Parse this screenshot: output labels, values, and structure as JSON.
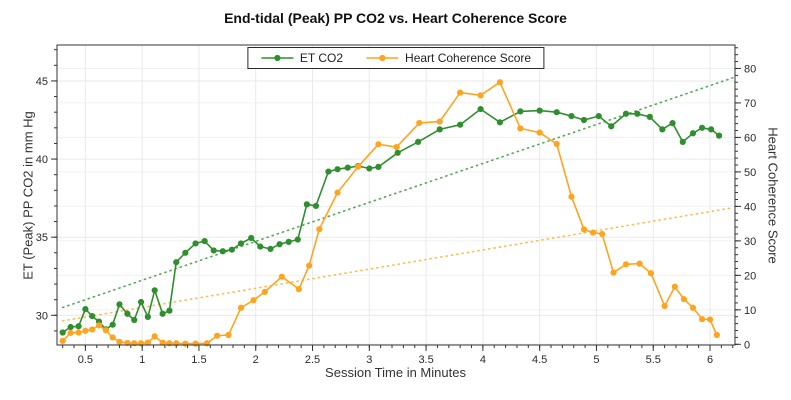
{
  "chart_data": {
    "type": "line",
    "title": "End-tidal (Peak) PP CO2 vs. Heart Coherence Score",
    "xlabel": "Session Time in Minutes",
    "ylabel_left": "ET (Peak) PP CO2 in mm Hg",
    "ylabel_right": "Heart Coherence Score",
    "xlim": [
      0.25,
      6.22
    ],
    "ylim_left": [
      28.1,
      47.3
    ],
    "ylim_right": [
      -0.2,
      86.8
    ],
    "x_ticks": [
      0.5,
      1,
      1.5,
      2,
      2.5,
      3,
      3.5,
      4,
      4.5,
      5,
      5.5,
      6
    ],
    "x_tick_labels": [
      "0.5",
      "1",
      "1.5",
      "2",
      "2.5",
      "3",
      "3.5",
      "4",
      "4.5",
      "5",
      "5.5",
      "6"
    ],
    "x_minor_step": 0.1,
    "y_left_ticks": [
      30,
      35,
      40,
      45
    ],
    "y_left_minor_step": 1,
    "y_right_ticks": [
      0,
      10,
      20,
      30,
      40,
      50,
      60,
      70,
      80
    ],
    "y_right_minor_step": 2,
    "grid": "on",
    "legend_position": "top-center",
    "series": [
      {
        "name": "ET CO2",
        "axis": "left",
        "color": "#2f8f2f",
        "trend_color": "#55a855",
        "trend": [
          [
            0.3,
            30.5
          ],
          [
            6.2,
            45.2
          ]
        ],
        "points": [
          [
            0.3,
            28.9
          ],
          [
            0.37,
            29.25
          ],
          [
            0.44,
            29.3
          ],
          [
            0.5,
            30.4
          ],
          [
            0.56,
            29.95
          ],
          [
            0.62,
            29.6
          ],
          [
            0.68,
            29.1
          ],
          [
            0.74,
            29.4
          ],
          [
            0.8,
            30.7
          ],
          [
            0.87,
            30.1
          ],
          [
            0.93,
            29.7
          ],
          [
            0.99,
            30.85
          ],
          [
            1.05,
            29.9
          ],
          [
            1.11,
            31.6
          ],
          [
            1.18,
            30.1
          ],
          [
            1.24,
            30.3
          ],
          [
            1.3,
            33.4
          ],
          [
            1.38,
            34.0
          ],
          [
            1.47,
            34.6
          ],
          [
            1.55,
            34.75
          ],
          [
            1.63,
            34.15
          ],
          [
            1.71,
            34.1
          ],
          [
            1.79,
            34.2
          ],
          [
            1.87,
            34.6
          ],
          [
            1.96,
            34.95
          ],
          [
            2.04,
            34.4
          ],
          [
            2.13,
            34.25
          ],
          [
            2.21,
            34.55
          ],
          [
            2.29,
            34.7
          ],
          [
            2.37,
            34.85
          ],
          [
            2.45,
            37.1
          ],
          [
            2.53,
            37.0
          ],
          [
            2.64,
            39.2
          ],
          [
            2.72,
            39.35
          ],
          [
            2.81,
            39.45
          ],
          [
            2.9,
            39.55
          ],
          [
            3.0,
            39.4
          ],
          [
            3.08,
            39.5
          ],
          [
            3.25,
            40.4
          ],
          [
            3.43,
            41.1
          ],
          [
            3.62,
            41.9
          ],
          [
            3.8,
            42.2
          ],
          [
            3.98,
            43.2
          ],
          [
            4.15,
            42.35
          ],
          [
            4.33,
            43.05
          ],
          [
            4.5,
            43.1
          ],
          [
            4.65,
            43.0
          ],
          [
            4.78,
            42.75
          ],
          [
            4.89,
            42.5
          ],
          [
            5.02,
            42.75
          ],
          [
            5.13,
            42.1
          ],
          [
            5.26,
            42.9
          ],
          [
            5.36,
            42.9
          ],
          [
            5.47,
            42.7
          ],
          [
            5.58,
            41.9
          ],
          [
            5.67,
            42.3
          ],
          [
            5.76,
            41.1
          ],
          [
            5.85,
            41.65
          ],
          [
            5.93,
            42.0
          ],
          [
            6.01,
            41.9
          ],
          [
            6.08,
            41.5
          ]
        ]
      },
      {
        "name": "Heart Coherence Score",
        "axis": "right",
        "color": "#FFA41F",
        "trend_color": "#ffbb55",
        "trend": [
          [
            0.3,
            6.8
          ],
          [
            6.2,
            39.6
          ]
        ],
        "points": [
          [
            0.3,
            1.0
          ],
          [
            0.37,
            3.3
          ],
          [
            0.44,
            3.4
          ],
          [
            0.5,
            3.9
          ],
          [
            0.56,
            4.3
          ],
          [
            0.62,
            5.5
          ],
          [
            0.68,
            4.1
          ],
          [
            0.74,
            2.0
          ],
          [
            0.8,
            0.7
          ],
          [
            0.87,
            0.4
          ],
          [
            0.93,
            0.3
          ],
          [
            0.99,
            0.3
          ],
          [
            1.05,
            0.5
          ],
          [
            1.11,
            2.3
          ],
          [
            1.18,
            0.5
          ],
          [
            1.24,
            0.3
          ],
          [
            1.3,
            0.3
          ],
          [
            1.38,
            0.2
          ],
          [
            1.47,
            0.2
          ],
          [
            1.57,
            0.3
          ],
          [
            1.66,
            2.5
          ],
          [
            1.76,
            2.7
          ],
          [
            1.87,
            10.6
          ],
          [
            1.98,
            12.8
          ],
          [
            2.08,
            15.2
          ],
          [
            2.23,
            19.6
          ],
          [
            2.38,
            16.0
          ],
          [
            2.47,
            22.8
          ],
          [
            2.56,
            33.4
          ],
          [
            2.72,
            44.0
          ],
          [
            2.9,
            51.5
          ],
          [
            3.08,
            58.0
          ],
          [
            3.24,
            57.2
          ],
          [
            3.44,
            64.2
          ],
          [
            3.62,
            64.6
          ],
          [
            3.8,
            73.0
          ],
          [
            3.98,
            72.2
          ],
          [
            4.15,
            76.0
          ],
          [
            4.33,
            62.6
          ],
          [
            4.5,
            61.4
          ],
          [
            4.65,
            58.1
          ],
          [
            4.78,
            42.8
          ],
          [
            4.89,
            33.3
          ],
          [
            4.97,
            32.4
          ],
          [
            5.05,
            32.0
          ],
          [
            5.15,
            20.8
          ],
          [
            5.26,
            23.2
          ],
          [
            5.38,
            23.4
          ],
          [
            5.48,
            20.6
          ],
          [
            5.6,
            11.1
          ],
          [
            5.69,
            16.7
          ],
          [
            5.77,
            13.1
          ],
          [
            5.85,
            10.6
          ],
          [
            5.93,
            7.3
          ],
          [
            6.0,
            7.2
          ],
          [
            6.06,
            2.7
          ]
        ]
      }
    ]
  }
}
